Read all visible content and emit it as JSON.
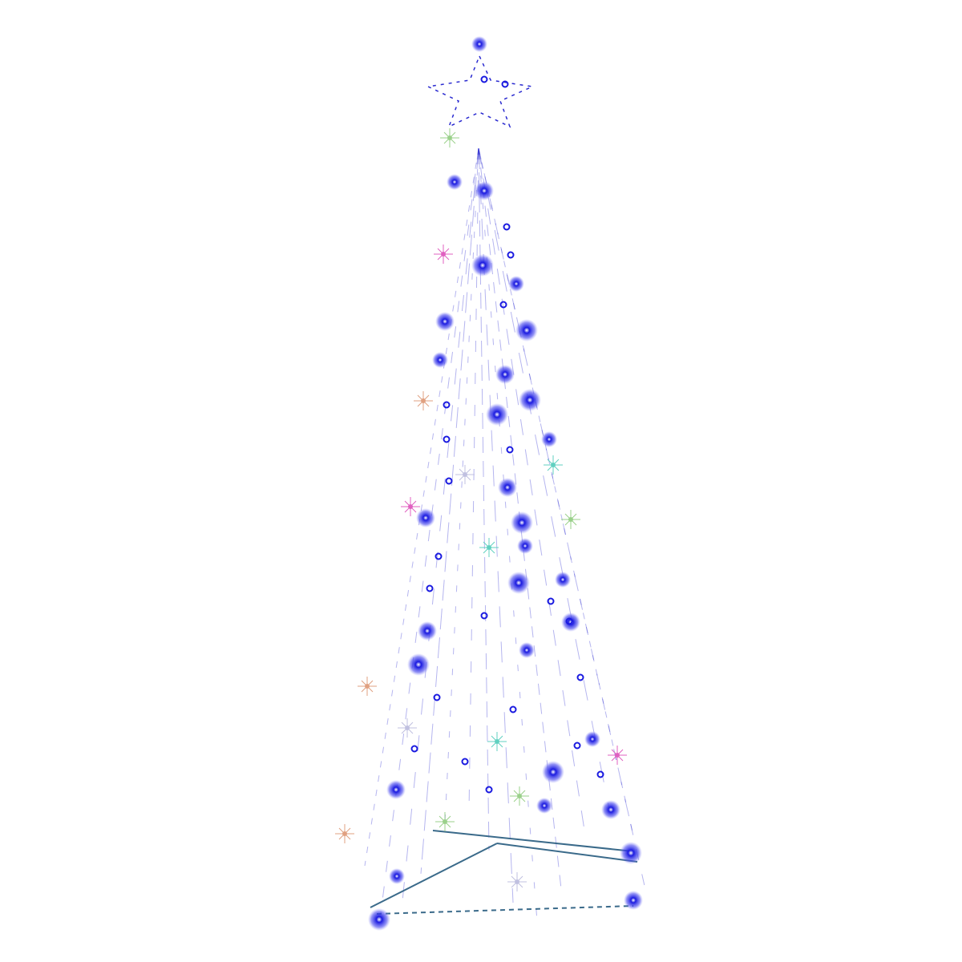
{
  "image": {
    "background": "#ffffff",
    "subject_icon": "christmas-tree-icon",
    "topper_icon": "star-icon",
    "colors": {
      "light_primary": "#1a1ae0",
      "light_glow": "#6f6ff5",
      "strand": "#2a2ad0",
      "frame": "#3a6a8a",
      "twinkle_colors": [
        "#9ad08a",
        "#e0a080",
        "#c0c0e0",
        "#e060c0",
        "#60d0c0"
      ]
    }
  }
}
